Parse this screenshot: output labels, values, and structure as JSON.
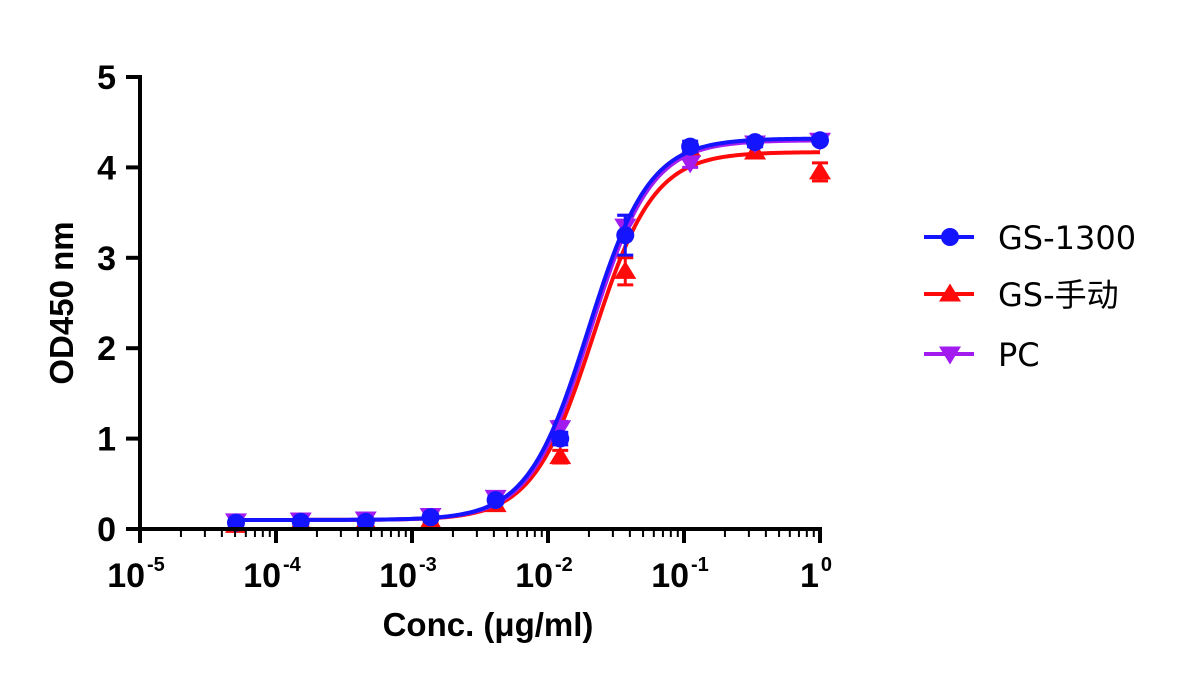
{
  "chart_data": {
    "type": "scatter",
    "title": "",
    "xlabel": "Conc. (μg/ml)",
    "ylabel": "OD450 nm",
    "x_scale": "log",
    "xlim": [
      1e-05,
      1
    ],
    "ylim": [
      0,
      5
    ],
    "x_ticks": [
      {
        "base": "10",
        "exp": "-5",
        "value": 1e-05
      },
      {
        "base": "10",
        "exp": "-4",
        "value": 0.0001
      },
      {
        "base": "10",
        "exp": "-3",
        "value": 0.001
      },
      {
        "base": "10",
        "exp": "-2",
        "value": 0.01
      },
      {
        "base": "10",
        "exp": "-1",
        "value": 0.1
      },
      {
        "base": "1",
        "exp": "0",
        "value": 1
      }
    ],
    "y_ticks": [
      "0",
      "1",
      "2",
      "3",
      "4",
      "5"
    ],
    "grid": false,
    "legend_position": "right",
    "series": [
      {
        "name": "GS-1300",
        "color": "#1414ff",
        "marker": "circle",
        "x": [
          5.08e-05,
          0.000152,
          0.000457,
          0.00137,
          0.00412,
          0.0123,
          0.037,
          0.111,
          0.333,
          1
        ],
        "y": [
          0.07,
          0.08,
          0.08,
          0.13,
          0.32,
          1.0,
          3.25,
          4.23,
          4.28,
          4.3
        ],
        "err": [
          0.02,
          0.02,
          0.02,
          0.03,
          0.04,
          0.07,
          0.22,
          0.06,
          0.05,
          0.03
        ],
        "fit": {
          "bottom": 0.1,
          "top": 4.32,
          "ec50": 0.0198,
          "hill": 1.95
        }
      },
      {
        "name": "GS-手动",
        "color": "#ff0a0a",
        "marker": "triangle-up",
        "x": [
          5.08e-05,
          0.000152,
          0.000457,
          0.00137,
          0.00412,
          0.0123,
          0.037,
          0.111,
          0.333,
          1
        ],
        "y": [
          0.04,
          0.07,
          0.08,
          0.09,
          0.27,
          0.8,
          2.85,
          4.2,
          4.17,
          3.95
        ],
        "err": [
          0.02,
          0.02,
          0.02,
          0.03,
          0.04,
          0.07,
          0.15,
          0.06,
          0.06,
          0.1
        ],
        "fit": {
          "bottom": 0.1,
          "top": 4.17,
          "ec50": 0.0215,
          "hill": 1.95
        }
      },
      {
        "name": "PC",
        "color": "#a21cf0",
        "marker": "triangle-down",
        "x": [
          5.08e-05,
          0.000152,
          0.000457,
          0.00137,
          0.00412,
          0.0123,
          0.037,
          0.111,
          0.333,
          1
        ],
        "y": [
          0.09,
          0.1,
          0.11,
          0.15,
          0.35,
          1.12,
          3.35,
          4.05,
          4.27,
          4.3
        ],
        "err": [
          0.02,
          0.02,
          0.02,
          0.03,
          0.04,
          0.07,
          0.12,
          0.05,
          0.04,
          0.03
        ],
        "fit": {
          "bottom": 0.1,
          "top": 4.3,
          "ec50": 0.0205,
          "hill": 1.95
        }
      }
    ]
  }
}
